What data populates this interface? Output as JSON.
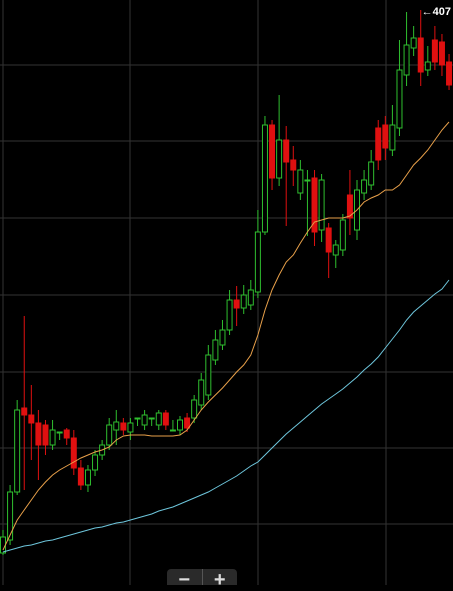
{
  "chart_data": {
    "type": "candlestick",
    "ylim": [
      120.5,
      413
    ],
    "up_color": "#2fbf2f",
    "down_color": "#e01010",
    "open": [
      136.5,
      143,
      167,
      209,
      205.5,
      201.5,
      200.5,
      190.5,
      197,
      198,
      194,
      179,
      170.5,
      178,
      185.5,
      190.5,
      198,
      201.5,
      197,
      204,
      200.5,
      204,
      200.5,
      206.5,
      198,
      198,
      204,
      204,
      210.5,
      215.5,
      233,
      240.5,
      248,
      263,
      259,
      260.5,
      267,
      297,
      350.5,
      324,
      343,
      333,
      316.5,
      323,
      324,
      298,
      299,
      285.5,
      288,
      315.5,
      298,
      316.5,
      320.5,
      349,
      350.5,
      338,
      349,
      375.5,
      389,
      394,
      378,
      393,
      392,
      382
    ],
    "close": [
      144.5,
      167,
      208,
      205.5,
      201.5,
      190.5,
      190.5,
      198,
      197,
      194,
      179,
      170.5,
      178,
      185.5,
      190.5,
      200.5,
      202,
      198,
      201.5,
      204,
      205.5,
      204,
      206.5,
      200.5,
      198,
      203,
      199,
      213,
      223,
      235.5,
      243,
      248,
      263,
      259,
      265.5,
      268,
      297,
      350.5,
      324,
      343,
      332,
      328,
      328,
      323,
      297,
      323,
      287,
      290.5,
      303,
      304,
      318,
      323,
      332,
      333,
      339,
      350.5,
      378,
      390.5,
      394,
      377,
      382,
      382,
      380.5,
      370.5
    ],
    "high": [
      148,
      170.5,
      213,
      255,
      220.5,
      208,
      203,
      203,
      197,
      199,
      198,
      183,
      180.5,
      188,
      193,
      204,
      208,
      204,
      204,
      204,
      208,
      204,
      208,
      208,
      203,
      205,
      206.5,
      215.5,
      226.5,
      240.5,
      248,
      253,
      268,
      270,
      270.5,
      273,
      308,
      355,
      353,
      365.5,
      350,
      340,
      333,
      328,
      328,
      326,
      301.5,
      293,
      306,
      328,
      323,
      328,
      338,
      353,
      355,
      360.5,
      393,
      407,
      400,
      408,
      390,
      400,
      396,
      386
    ],
    "low": [
      135.5,
      140.5,
      165.5,
      168,
      183,
      173,
      185.5,
      188,
      193,
      190.5,
      175.5,
      168,
      167,
      175,
      183,
      188,
      190.5,
      195.5,
      193,
      200,
      198,
      200,
      198,
      198,
      198,
      195.5,
      197,
      201.5,
      208,
      213,
      230.5,
      238,
      245.5,
      250,
      256,
      258,
      264,
      295.5,
      318,
      320,
      300,
      320,
      313,
      295,
      290,
      292,
      274,
      279,
      285,
      295.5,
      293,
      313,
      318,
      328,
      333,
      335,
      345,
      370,
      385,
      370,
      375,
      378,
      375,
      368
    ],
    "lines": [
      {
        "color": "#e8a04a",
        "values": [
          138,
          145.5,
          153,
          158,
          163,
          168,
          172,
          175.5,
          178,
          180,
          182,
          184,
          185.5,
          187,
          188,
          189.5,
          193,
          195,
          195.5,
          195.5,
          195.5,
          195,
          195,
          195,
          195,
          195.5,
          198,
          203,
          208,
          212,
          215.5,
          219,
          223,
          227,
          230.5,
          235.5,
          245.5,
          258,
          268,
          275.5,
          282,
          285.5,
          291.5,
          297,
          302,
          303,
          304,
          304,
          304,
          305,
          308,
          312,
          314,
          315.5,
          318,
          318,
          320.5,
          325.5,
          330.5,
          334,
          338,
          343,
          348,
          352
        ]
      },
      {
        "color": "#6ec6dc",
        "values": [
          137,
          138,
          139,
          140,
          140.5,
          141.5,
          142.5,
          143,
          144,
          145,
          146,
          147,
          148,
          149,
          149.5,
          150.5,
          151.5,
          152,
          153,
          154,
          155,
          156,
          157.5,
          158.5,
          159.5,
          161,
          162.5,
          164,
          165.5,
          167,
          169,
          171,
          173,
          175,
          177.5,
          180,
          182,
          185.5,
          189,
          192.5,
          196,
          199,
          202,
          205,
          208,
          211,
          213.5,
          216,
          218.5,
          221.5,
          224.5,
          228,
          231,
          234.5,
          239,
          243.5,
          248,
          253,
          257,
          260,
          263,
          266,
          268.5,
          273
        ]
      }
    ],
    "annotation": {
      "label": "←407",
      "value": 407
    }
  },
  "controls": {
    "zoom_out": "−",
    "zoom_in": "+"
  }
}
